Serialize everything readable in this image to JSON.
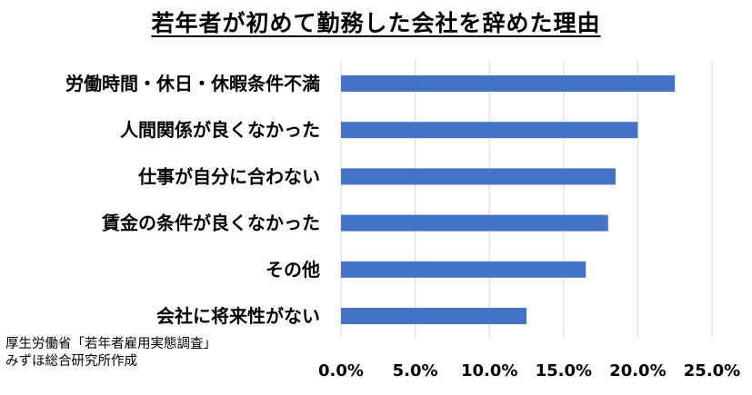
{
  "chart_data": {
    "type": "bar",
    "orientation": "horizontal",
    "title": "若年者が初めて勤務した会社を辞めた理由",
    "categories": [
      "労働時間・休日・休暇条件不満",
      "人間関係が良くなかった",
      "仕事が自分に合わない",
      "賃金の条件が良くなかった",
      "その他",
      "会社に将来性がない"
    ],
    "values": [
      22.5,
      20.0,
      18.5,
      18.0,
      16.5,
      12.5
    ],
    "xlim": [
      0,
      25
    ],
    "x_ticks": [
      "0.0%",
      "5.0%",
      "10.0%",
      "15.0%",
      "20.0%",
      "25.0%"
    ],
    "grid": "vertical",
    "bar_color": "#4472C4",
    "grid_color": "#D9D9D9"
  },
  "source": {
    "line1": "厚生労働省「若年者雇用実態調査」",
    "line2": "みずほ総合研究所作成"
  }
}
